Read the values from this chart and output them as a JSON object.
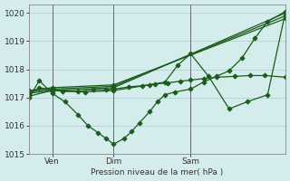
{
  "background_color": "#d4ecec",
  "grid_color": "#aacccc",
  "line_color": "#1a5c1a",
  "xlabel": "Pression niveau de la mer( hPa )",
  "ylim": [
    1015.0,
    1020.3
  ],
  "xlim": [
    0.0,
    1.0
  ],
  "yticks": [
    1015,
    1016,
    1017,
    1018,
    1019,
    1020
  ],
  "xtick_labels": [
    "Ven",
    "Dim",
    "Sam"
  ],
  "xtick_pos": [
    0.09,
    0.33,
    0.63
  ],
  "vline_pos": [
    0.09,
    0.33,
    0.63
  ],
  "series": [
    {
      "x": [
        0.0,
        0.04,
        0.09,
        0.14,
        0.19,
        0.23,
        0.27,
        0.3,
        0.33,
        0.37,
        0.4,
        0.43,
        0.47,
        0.5,
        0.53,
        0.57,
        0.63,
        0.68,
        0.73,
        0.78,
        0.83,
        0.88,
        0.93,
        1.0
      ],
      "y": [
        1017.0,
        1017.6,
        1017.15,
        1016.85,
        1016.4,
        1016.0,
        1015.75,
        1015.55,
        1015.35,
        1015.55,
        1015.8,
        1016.1,
        1016.5,
        1016.85,
        1017.1,
        1017.2,
        1017.3,
        1017.55,
        1017.75,
        1017.95,
        1018.4,
        1019.1,
        1019.7,
        1020.05
      ],
      "marker": "D",
      "ms": 2.5
    },
    {
      "x": [
        0.0,
        0.09,
        0.33,
        1.0
      ],
      "y": [
        1017.15,
        1017.25,
        1017.35,
        1020.0
      ],
      "marker": "D",
      "ms": 2.5
    },
    {
      "x": [
        0.0,
        0.09,
        0.33,
        1.0
      ],
      "y": [
        1017.2,
        1017.3,
        1017.4,
        1019.9
      ],
      "marker": "D",
      "ms": 2.5
    },
    {
      "x": [
        0.0,
        0.09,
        0.33,
        1.0
      ],
      "y": [
        1017.25,
        1017.35,
        1017.45,
        1019.8
      ],
      "marker": "D",
      "ms": 2.5
    },
    {
      "x": [
        0.0,
        0.09,
        0.22,
        0.33,
        0.47,
        0.53,
        0.58,
        0.63,
        0.7,
        0.78,
        0.85,
        0.93,
        1.0
      ],
      "y": [
        1017.05,
        1017.25,
        1017.2,
        1017.25,
        1017.45,
        1017.55,
        1018.15,
        1018.55,
        1017.75,
        1016.6,
        1016.85,
        1017.1,
        1020.05
      ],
      "marker": "D",
      "ms": 2.5
    },
    {
      "x": [
        0.0,
        0.04,
        0.09,
        0.13,
        0.19,
        0.25,
        0.3,
        0.33,
        0.39,
        0.44,
        0.49,
        0.54,
        0.59,
        0.63,
        0.68,
        0.73,
        0.8,
        0.86,
        0.92,
        1.0
      ],
      "y": [
        1017.12,
        1017.35,
        1017.28,
        1017.22,
        1017.22,
        1017.28,
        1017.28,
        1017.3,
        1017.38,
        1017.42,
        1017.48,
        1017.52,
        1017.58,
        1017.62,
        1017.67,
        1017.72,
        1017.75,
        1017.78,
        1017.78,
        1017.72
      ],
      "marker": "D",
      "ms": 2.5
    }
  ]
}
